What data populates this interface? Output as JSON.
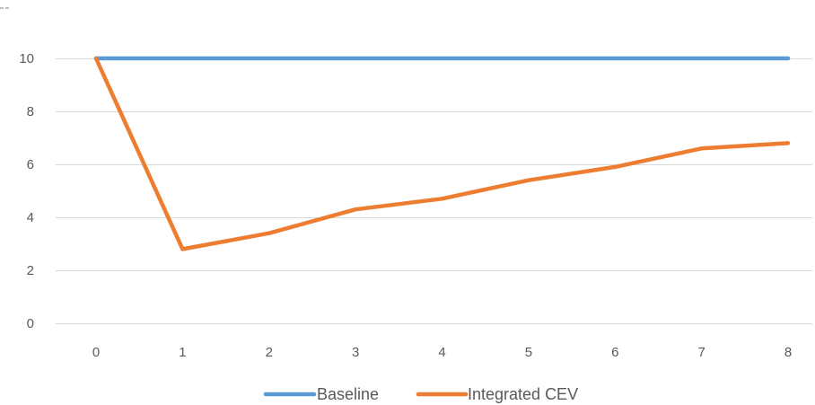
{
  "chart_data": {
    "type": "line",
    "x": [
      0,
      1,
      2,
      3,
      4,
      5,
      6,
      7,
      8
    ],
    "series": [
      {
        "name": "Baseline",
        "color": "#5b9bd5",
        "values": [
          10,
          10,
          10,
          10,
          10,
          10,
          10,
          10,
          10
        ]
      },
      {
        "name": "Integrated CEV",
        "color": "#ed7d31",
        "values": [
          10,
          2.8,
          3.4,
          4.3,
          4.7,
          5.4,
          5.9,
          6.6,
          6.8
        ]
      }
    ],
    "title": "",
    "xlabel": "",
    "ylabel": "",
    "xlim": [
      0,
      8
    ],
    "ylim": [
      0,
      10
    ],
    "yticks": [
      0,
      2,
      4,
      6,
      8,
      10
    ],
    "xticks": [
      0,
      1,
      2,
      3,
      4,
      5,
      6,
      7,
      8
    ],
    "grid": true,
    "gridlines": "horizontal",
    "legend": "bottom-center"
  }
}
